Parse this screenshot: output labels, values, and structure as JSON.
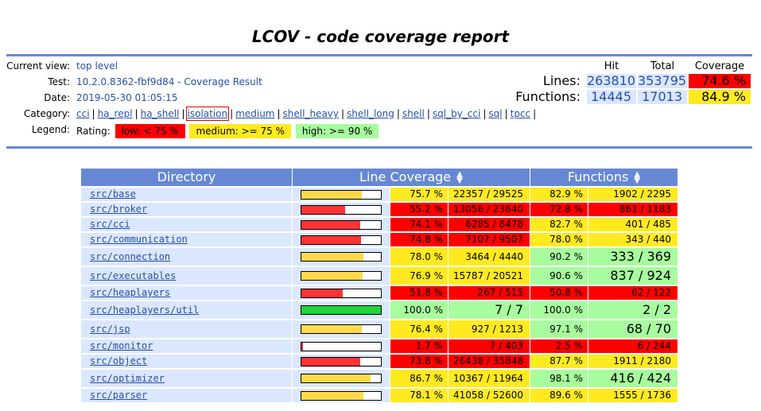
{
  "title": "LCOV - code coverage report",
  "info": {
    "current_view_label": "Current view:",
    "current_view": "top level",
    "test_label": "Test:",
    "test": "10.2.0.8362-fbf9d84 - Coverage Result",
    "date_label": "Date:",
    "date": "2019-05-30 01:05:15",
    "category_label": "Category:",
    "categories": [
      "cci",
      "ha_repl",
      "ha_shell",
      "isolation",
      "medium",
      "shell_heavy",
      "shell_long",
      "shell",
      "sql_by_cci",
      "sql",
      "tpcc"
    ],
    "legend_label": "Legend:",
    "rating_label": "Rating:",
    "legend_low": "low: < 75 %",
    "legend_medium": "medium: >= 75 %",
    "legend_high": "high: >= 90 %"
  },
  "summary": {
    "hit_header": "Hit",
    "total_header": "Total",
    "coverage_header": "Coverage",
    "lines_label": "Lines:",
    "lines_hit": "263810",
    "lines_total": "353795",
    "lines_coverage": "74.6 %",
    "functions_label": "Functions:",
    "functions_hit": "14445",
    "functions_total": "17013",
    "functions_coverage": "84.9 %"
  },
  "colors": {
    "low": "#ff0000",
    "medium": "#ffea20",
    "high": "#a7fc9d",
    "header": "#6688d4",
    "light": "#dae7fe",
    "bar_red": "#ff3333",
    "bar_yellow": "#ffd94a",
    "bar_green": "#23d33b"
  },
  "table": {
    "directory_header": "Directory",
    "line_coverage_header": "Line Coverage",
    "functions_header": "Functions",
    "rows": [
      {
        "dir": "src/base",
        "line_pct": "75.7 %",
        "line_cnt": "22357 / 29525",
        "fn_pct": "82.9 %",
        "fn_cnt": "1902 / 2295",
        "line_rating": "medium",
        "fn_rating": "medium",
        "bar": 0.757
      },
      {
        "dir": "src/broker",
        "line_pct": "55.2 %",
        "line_cnt": "13056 / 23640",
        "fn_pct": "72.8 %",
        "fn_cnt": "861 / 1183",
        "line_rating": "low",
        "fn_rating": "low",
        "bar": 0.552
      },
      {
        "dir": "src/cci",
        "line_pct": "74.1 %",
        "line_cnt": "6285 / 8478",
        "fn_pct": "82.7 %",
        "fn_cnt": "401 / 485",
        "line_rating": "low",
        "fn_rating": "medium",
        "bar": 0.741
      },
      {
        "dir": "src/communication",
        "line_pct": "74.8 %",
        "line_cnt": "7107 / 9507",
        "fn_pct": "78.0 %",
        "fn_cnt": "343 / 440",
        "line_rating": "low",
        "fn_rating": "medium",
        "bar": 0.748
      },
      {
        "dir": "src/connection",
        "line_pct": "78.0 %",
        "line_cnt": "3464 / 4440",
        "fn_pct": "90.2 %",
        "fn_cnt": "333 / 369",
        "line_rating": "medium",
        "fn_rating": "high",
        "bar": 0.78
      },
      {
        "dir": "src/executables",
        "line_pct": "76.9 %",
        "line_cnt": "15787 / 20521",
        "fn_pct": "90.6 %",
        "fn_cnt": "837 / 924",
        "line_rating": "medium",
        "fn_rating": "high",
        "bar": 0.769
      },
      {
        "dir": "src/heaplayers",
        "line_pct": "51.8 %",
        "line_cnt": "267 / 515",
        "fn_pct": "50.8 %",
        "fn_cnt": "62 / 122",
        "line_rating": "low",
        "fn_rating": "low",
        "bar": 0.518
      },
      {
        "dir": "src/heaplayers/util",
        "line_pct": "100.0 %",
        "line_cnt": "7 / 7",
        "fn_pct": "100.0 %",
        "fn_cnt": "2 / 2",
        "line_rating": "high",
        "fn_rating": "high",
        "bar": 1.0
      },
      {
        "dir": "src/jsp",
        "line_pct": "76.4 %",
        "line_cnt": "927 / 1213",
        "fn_pct": "97.1 %",
        "fn_cnt": "68 / 70",
        "line_rating": "medium",
        "fn_rating": "high",
        "bar": 0.764
      },
      {
        "dir": "src/monitor",
        "line_pct": "1.7 %",
        "line_cnt": "7 / 403",
        "fn_pct": "2.5 %",
        "fn_cnt": "6 / 244",
        "line_rating": "low",
        "fn_rating": "low",
        "bar": 0.017
      },
      {
        "dir": "src/object",
        "line_pct": "73.8 %",
        "line_cnt": "26438 / 35848",
        "fn_pct": "87.7 %",
        "fn_cnt": "1911 / 2180",
        "line_rating": "low",
        "fn_rating": "medium",
        "bar": 0.738
      },
      {
        "dir": "src/optimizer",
        "line_pct": "86.7 %",
        "line_cnt": "10367 / 11964",
        "fn_pct": "98.1 %",
        "fn_cnt": "416 / 424",
        "line_rating": "medium",
        "fn_rating": "high",
        "bar": 0.867
      },
      {
        "dir": "src/parser",
        "line_pct": "78.1 %",
        "line_cnt": "41058 / 52600",
        "fn_pct": "89.6 %",
        "fn_cnt": "1555 / 1736",
        "line_rating": "medium",
        "fn_rating": "medium",
        "bar": 0.781
      }
    ]
  }
}
